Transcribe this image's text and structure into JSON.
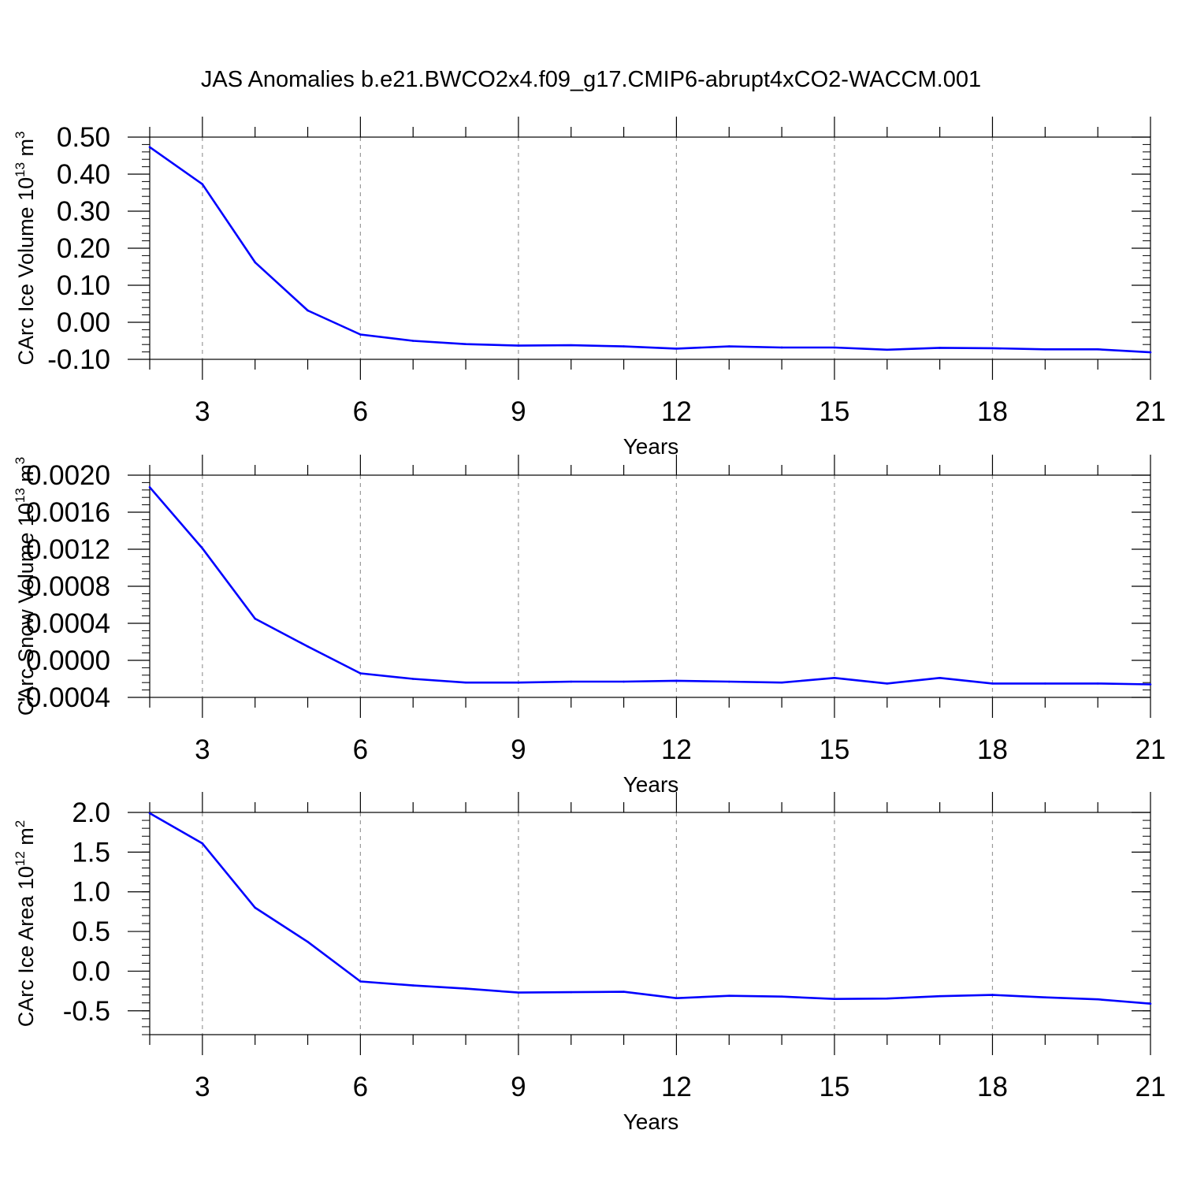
{
  "title": "JAS Anomalies b.e21.BWCO2x4.f09_g17.CMIP6-abrupt4xCO2-WACCM.001",
  "colors": {
    "series": "#0000ff",
    "grid": "#999999",
    "axis": "#000000"
  },
  "chart_data": [
    {
      "type": "line",
      "ylabel": {
        "base": "CArc Ice Volume 10",
        "exponent": "13",
        "unit": " m",
        "unit_exponent": "3"
      },
      "xlabel": "Years",
      "xlim": [
        2,
        21
      ],
      "ylim": [
        -0.1,
        0.5
      ],
      "yticks": [
        -0.1,
        0.0,
        0.1,
        0.2,
        0.3,
        0.4,
        0.5
      ],
      "ytick_labels": [
        "-0.10",
        "0.00",
        "0.10",
        "0.20",
        "0.30",
        "0.40",
        "0.50"
      ],
      "xticks": [
        3,
        6,
        9,
        12,
        15,
        18,
        21
      ],
      "xtick_labels": [
        "3",
        "6",
        "9",
        "12",
        "15",
        "18",
        "21"
      ],
      "grid": "x-dashed",
      "x": [
        2,
        3,
        4,
        5,
        6,
        7,
        8,
        9,
        10,
        11,
        12,
        13,
        14,
        15,
        16,
        17,
        18,
        19,
        20,
        21
      ],
      "values": [
        0.473,
        0.373,
        0.162,
        0.032,
        -0.033,
        -0.05,
        -0.059,
        -0.063,
        -0.062,
        -0.065,
        -0.071,
        -0.065,
        -0.068,
        -0.068,
        -0.074,
        -0.069,
        -0.07,
        -0.073,
        -0.073,
        -0.081
      ]
    },
    {
      "type": "line",
      "ylabel": {
        "base": "CArc Snow Volume 10",
        "exponent": "13",
        "unit": " m",
        "unit_exponent": "3"
      },
      "xlabel": "Years",
      "xlim": [
        2,
        21
      ],
      "ylim": [
        -0.0004,
        0.002
      ],
      "yticks": [
        -0.0004,
        0.0,
        0.0004,
        0.0008,
        0.0012,
        0.0016,
        0.002
      ],
      "ytick_labels": [
        "-0.0004",
        "0.0000",
        "0.0004",
        "0.0008",
        "0.0012",
        "0.0016",
        "0.0020"
      ],
      "xticks": [
        3,
        6,
        9,
        12,
        15,
        18,
        21
      ],
      "xtick_labels": [
        "3",
        "6",
        "9",
        "12",
        "15",
        "18",
        "21"
      ],
      "grid": "x-dashed",
      "x": [
        2,
        3,
        4,
        5,
        6,
        7,
        8,
        9,
        10,
        11,
        12,
        13,
        14,
        15,
        16,
        17,
        18,
        19,
        20,
        21
      ],
      "values": [
        0.00187,
        0.00121,
        0.00045,
        0.00015,
        -0.00014,
        -0.0002,
        -0.00024,
        -0.00024,
        -0.00023,
        -0.00023,
        -0.00022,
        -0.00023,
        -0.00024,
        -0.00019,
        -0.00025,
        -0.00019,
        -0.00025,
        -0.00025,
        -0.00025,
        -0.00026
      ]
    },
    {
      "type": "line",
      "ylabel": {
        "base": "CArc Ice Area 10",
        "exponent": "12",
        "unit": " m",
        "unit_exponent": "2"
      },
      "xlabel": "Years",
      "xlim": [
        2,
        21
      ],
      "ylim": [
        -0.8,
        2.0
      ],
      "yticks": [
        -0.5,
        0.0,
        0.5,
        1.0,
        1.5,
        2.0
      ],
      "ytick_labels": [
        "-0.5",
        "0.0",
        "0.5",
        "1.0",
        "1.5",
        "2.0"
      ],
      "xticks": [
        3,
        6,
        9,
        12,
        15,
        18,
        21
      ],
      "xtick_labels": [
        "3",
        "6",
        "9",
        "12",
        "15",
        "18",
        "21"
      ],
      "grid": "x-dashed",
      "x": [
        2,
        3,
        4,
        5,
        6,
        7,
        8,
        9,
        10,
        11,
        12,
        13,
        14,
        15,
        16,
        17,
        18,
        19,
        20,
        21
      ],
      "values": [
        1.99,
        1.61,
        0.8,
        0.37,
        -0.13,
        -0.18,
        -0.22,
        -0.27,
        -0.265,
        -0.26,
        -0.34,
        -0.31,
        -0.32,
        -0.35,
        -0.345,
        -0.315,
        -0.3,
        -0.33,
        -0.355,
        -0.41
      ]
    }
  ]
}
